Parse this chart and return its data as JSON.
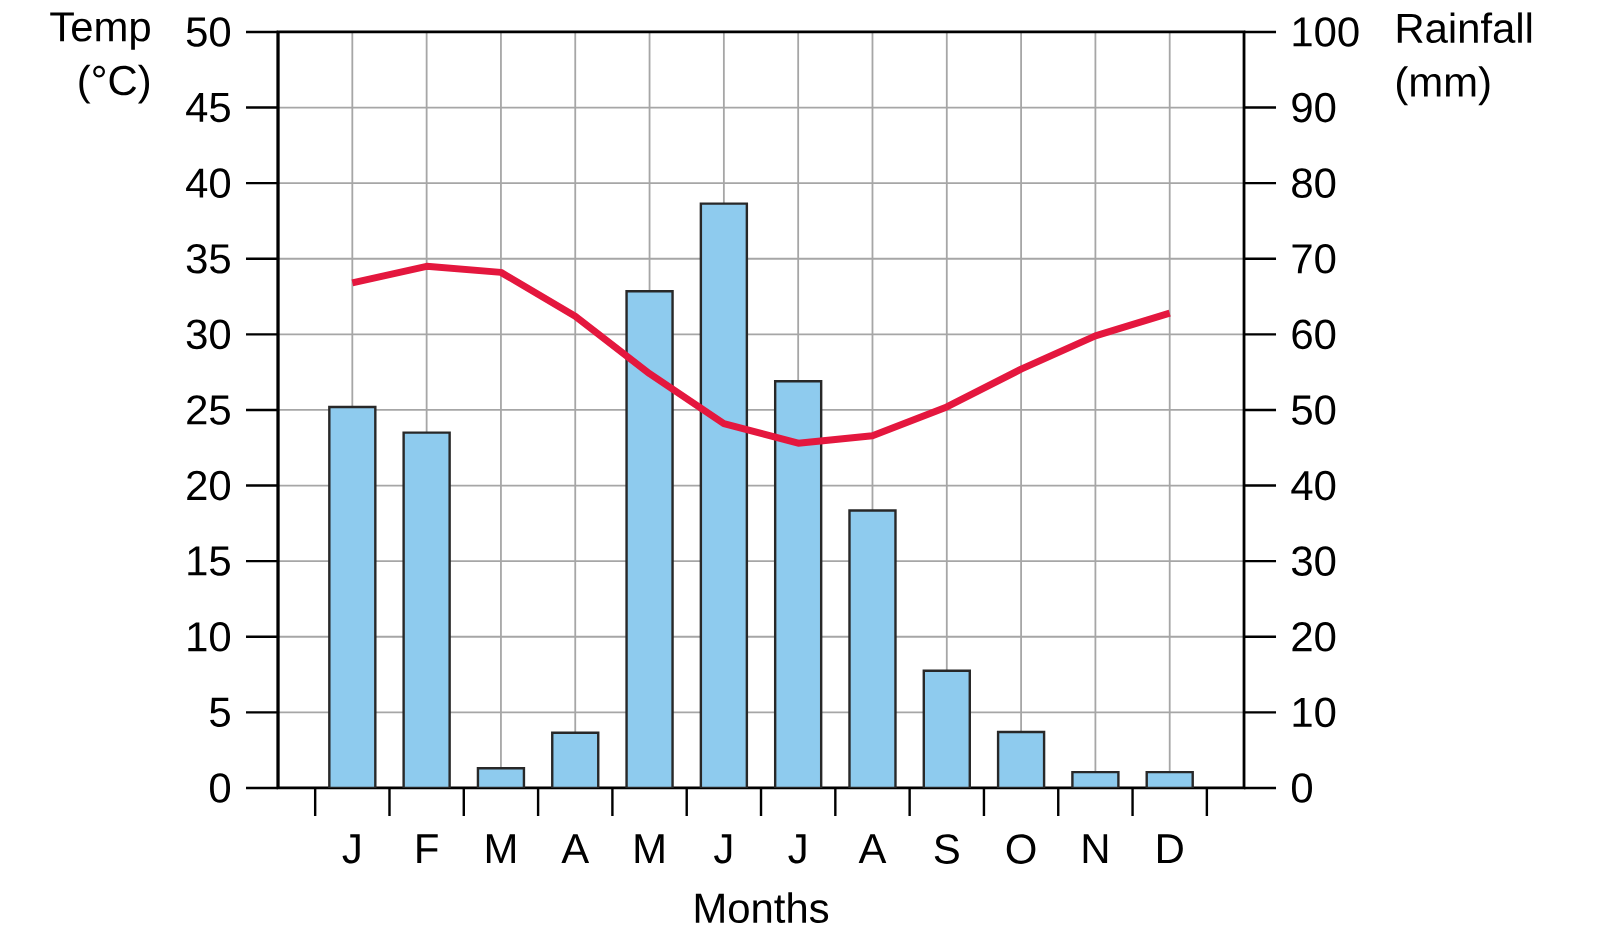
{
  "chart_data": {
    "type": "bar",
    "xlabel": "Months",
    "ylabel": "Temp (°C)",
    "y2label": "Rainfall (mm)",
    "categories": [
      "J",
      "F",
      "M",
      "A",
      "M",
      "J",
      "J",
      "A",
      "S",
      "O",
      "N",
      "D"
    ],
    "series": [
      {
        "axis": "y2",
        "color": "#8ecbee",
        "values": [
          50.4,
          47,
          2.6,
          7.3,
          65.7,
          77.3,
          53.8,
          36.7,
          15.5,
          7.4,
          2.1,
          2.1
        ]
      },
      {
        "type": "line",
        "axis": "y",
        "color": "#e4173e",
        "values": [
          33.4,
          34.5,
          34.1,
          31.2,
          27.4,
          24.1,
          22.8,
          23.3,
          25.2,
          27.7,
          29.9,
          31.4
        ]
      }
    ],
    "ylim": [
      0,
      50
    ],
    "yticks": [
      0,
      5,
      10,
      15,
      20,
      25,
      30,
      35,
      40,
      45,
      50
    ],
    "y2lim": [
      0,
      100
    ],
    "y2ticks": [
      0,
      10,
      20,
      30,
      40,
      50,
      60,
      70,
      80,
      90,
      100
    ],
    "grid": true
  }
}
